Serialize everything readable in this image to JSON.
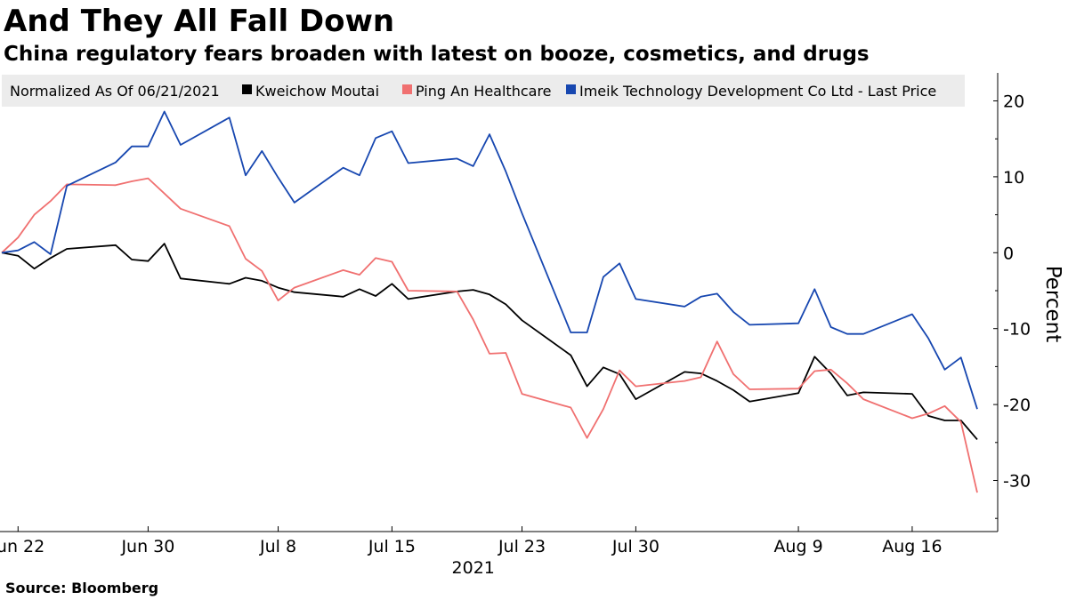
{
  "title": "And They All Fall Down",
  "subtitle": "China regulatory fears broaden with latest on booze, cosmetics, and drugs",
  "source": "Source:  Bloomberg",
  "chart_data": {
    "type": "line",
    "legend_note": "Normalized As Of 06/21/2021",
    "legend_placement": "top-left",
    "ylabel": "Percent",
    "ylim": [
      -35,
      23
    ],
    "yticks": [
      20,
      10,
      0,
      -10,
      -20,
      -30
    ],
    "ytick_labels": [
      "20",
      "10",
      "0",
      "-10",
      "-20",
      "-30"
    ],
    "year_label": "2021",
    "grid": false,
    "x_start": "2021-06-21",
    "x_end": "2021-08-20",
    "x": [
      "2021-06-21",
      "2021-06-22",
      "2021-06-23",
      "2021-06-24",
      "2021-06-25",
      "2021-06-28",
      "2021-06-29",
      "2021-06-30",
      "2021-07-01",
      "2021-07-02",
      "2021-07-05",
      "2021-07-06",
      "2021-07-07",
      "2021-07-08",
      "2021-07-09",
      "2021-07-12",
      "2021-07-13",
      "2021-07-14",
      "2021-07-15",
      "2021-07-16",
      "2021-07-19",
      "2021-07-20",
      "2021-07-21",
      "2021-07-22",
      "2021-07-23",
      "2021-07-26",
      "2021-07-27",
      "2021-07-28",
      "2021-07-29",
      "2021-07-30",
      "2021-08-02",
      "2021-08-03",
      "2021-08-04",
      "2021-08-05",
      "2021-08-06",
      "2021-08-09",
      "2021-08-10",
      "2021-08-11",
      "2021-08-12",
      "2021-08-13",
      "2021-08-16",
      "2021-08-17",
      "2021-08-18",
      "2021-08-19",
      "2021-08-20"
    ],
    "xticks": [
      {
        "date": "2021-06-22",
        "label": "Jun 22"
      },
      {
        "date": "2021-06-30",
        "label": "Jun 30"
      },
      {
        "date": "2021-07-08",
        "label": "Jul 8"
      },
      {
        "date": "2021-07-15",
        "label": "Jul 15"
      },
      {
        "date": "2021-07-23",
        "label": "Jul 23"
      },
      {
        "date": "2021-07-30",
        "label": "Jul 30"
      },
      {
        "date": "2021-08-09",
        "label": "Aug 9"
      },
      {
        "date": "2021-08-16",
        "label": "Aug 16"
      }
    ],
    "series": [
      {
        "name": "Kweichow Moutai",
        "color": "#000000",
        "values": [
          0,
          -0.4,
          -2.1,
          -0.7,
          0.5,
          1.0,
          -0.9,
          -1.1,
          1.2,
          -3.4,
          -4.1,
          -3.3,
          -3.7,
          -4.6,
          -5.2,
          -5.8,
          -4.8,
          -5.7,
          -4.1,
          -6.1,
          -5.1,
          -4.9,
          -5.5,
          -6.8,
          -8.9,
          -13.5,
          -17.6,
          -15.1,
          -16.0,
          -19.3,
          -15.7,
          -15.9,
          -16.9,
          -18.1,
          -19.6,
          -18.5,
          -13.7,
          -15.9,
          -18.8,
          -18.4,
          -18.6,
          -21.5,
          -22.1,
          -22.1,
          -24.6
        ]
      },
      {
        "name": "Ping An Healthcare",
        "color": "#f07070",
        "values": [
          0,
          2.0,
          5.0,
          6.8,
          9.0,
          8.9,
          9.4,
          9.8,
          7.8,
          5.8,
          3.5,
          -0.8,
          -2.4,
          -6.3,
          -4.6,
          -2.3,
          -2.9,
          -0.7,
          -1.2,
          -5.0,
          -5.1,
          -8.8,
          -13.3,
          -13.2,
          -18.6,
          -20.4,
          -24.4,
          -20.6,
          -15.5,
          -17.6,
          -16.9,
          -16.4,
          -11.7,
          -16.0,
          -18.0,
          -17.9,
          -15.6,
          -15.4,
          -17.2,
          -19.3,
          -21.8,
          -21.2,
          -20.2,
          -22.3,
          -31.6
        ]
      },
      {
        "name": "Imeik Technology Development Co Ltd - Last Price",
        "color": "#1747b0",
        "values": [
          0,
          0.3,
          1.4,
          -0.2,
          8.8,
          11.9,
          14.0,
          14.0,
          18.6,
          14.2,
          17.8,
          10.2,
          13.4,
          9.9,
          6.6,
          11.2,
          10.2,
          15.1,
          16.0,
          11.8,
          12.4,
          11.4,
          15.6,
          10.7,
          5.2,
          -10.5,
          -10.5,
          -3.2,
          -1.4,
          -6.1,
          -7.1,
          -5.8,
          -5.4,
          -7.8,
          -9.5,
          -9.3,
          -4.8,
          -9.8,
          -10.7,
          -10.7,
          -8.1,
          -11.3,
          -15.4,
          -13.8,
          -20.6
        ]
      }
    ]
  }
}
